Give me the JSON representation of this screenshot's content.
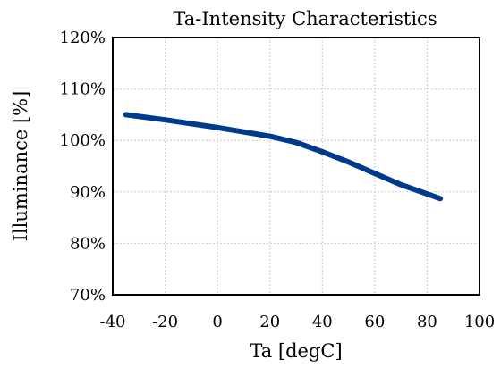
{
  "chart_data": {
    "type": "line",
    "title": "Ta-Intensity Characteristics",
    "xlabel": "Ta [degC]",
    "ylabel": "Illuminance [%]",
    "xlim": [
      -40,
      100
    ],
    "ylim": [
      70,
      120
    ],
    "x_ticks": [
      -40,
      -20,
      0,
      20,
      40,
      60,
      80,
      100
    ],
    "x_tick_labels": [
      "-40",
      "-20",
      "0",
      "20",
      "40",
      "60",
      "80",
      "100"
    ],
    "y_ticks": [
      70,
      80,
      90,
      100,
      110,
      120
    ],
    "y_tick_labels": [
      "70%",
      "80%",
      "90%",
      "100%",
      "110%",
      "120%"
    ],
    "grid": true,
    "legend": "none",
    "series": [
      {
        "color": "#003a8c",
        "x": [
          -35,
          -20,
          0,
          20,
          30,
          40,
          50,
          60,
          70,
          80,
          85
        ],
        "y": [
          105,
          104,
          102.5,
          100.8,
          99.6,
          97.8,
          95.8,
          93.6,
          91.4,
          89.6,
          88.7
        ]
      }
    ]
  }
}
